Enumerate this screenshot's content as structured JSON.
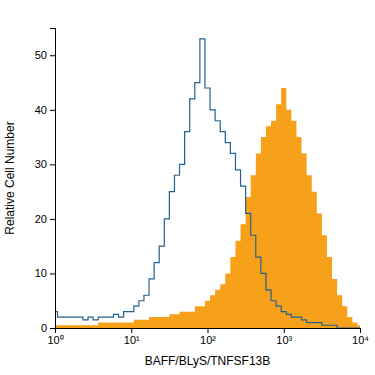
{
  "chart_data": {
    "type": "line",
    "x_label": "BAFF/BLyS/TNFSF13B",
    "y_label": "Relative Cell Number",
    "log": "x",
    "grid": false,
    "xlim": [
      1,
      10000
    ],
    "xticks": [
      {
        "value": 1,
        "label": "10⁰"
      },
      {
        "value": 10,
        "label": "10¹"
      },
      {
        "value": 100,
        "label": "10²"
      },
      {
        "value": 1000,
        "label": "10³"
      },
      {
        "value": 10000,
        "label": "10⁴"
      }
    ],
    "ylim": [
      0,
      55
    ],
    "yticks": [
      0,
      10,
      20,
      30,
      40,
      50
    ],
    "x": [
      1,
      1.166,
      1.359,
      1.585,
      1.848,
      2.154,
      2.512,
      2.929,
      3.415,
      3.981,
      4.642,
      5.412,
      6.31,
      7.356,
      8.577,
      10,
      11.66,
      13.59,
      15.85,
      18.48,
      21.54,
      25.12,
      29.29,
      34.15,
      39.81,
      46.42,
      54.12,
      63.1,
      73.56,
      85.77,
      100,
      116.6,
      135.9,
      158.5,
      184.8,
      215.4,
      251.2,
      292.9,
      341.5,
      398.1,
      464.2,
      541.2,
      631,
      735.6,
      857.7,
      1000,
      1166,
      1359,
      1585,
      1848,
      2154,
      2512,
      2929,
      3415,
      3981,
      4642,
      5412,
      6310,
      7356,
      8577,
      10000
    ],
    "series": [
      {
        "type": "area",
        "color": "#f7a11a",
        "line_style": "step",
        "values": [
          0.5,
          0.5,
          0.5,
          0.5,
          0.5,
          0.5,
          0.5,
          0.5,
          0.5,
          1,
          1,
          1,
          1,
          1,
          1,
          1,
          1.5,
          1.5,
          1.5,
          2,
          2,
          2,
          2,
          2.5,
          2.5,
          3,
          3,
          3,
          4,
          4,
          5,
          6,
          7,
          8,
          10,
          13,
          16,
          19,
          24,
          28,
          32,
          35,
          37,
          38,
          41,
          44,
          40,
          38,
          35,
          32,
          28,
          25,
          21,
          17,
          13,
          9,
          6,
          4,
          2,
          1,
          0.5
        ]
      },
      {
        "type": "line",
        "color": "#24618e",
        "line_style": "step",
        "values": [
          3,
          2,
          2,
          2,
          2,
          2,
          1.5,
          2,
          1.5,
          2,
          2,
          2,
          2.5,
          2,
          3,
          3,
          4,
          5,
          6,
          9,
          12,
          15,
          20,
          25,
          28,
          30,
          36,
          42,
          45,
          53,
          44,
          40,
          38,
          36,
          34,
          32,
          29,
          26,
          21,
          17,
          13,
          10,
          7,
          5,
          4,
          3,
          2.5,
          2,
          2,
          1.5,
          1,
          1,
          1,
          0.5,
          0.5,
          0.5,
          0,
          0,
          0,
          0,
          0
        ]
      }
    ]
  }
}
